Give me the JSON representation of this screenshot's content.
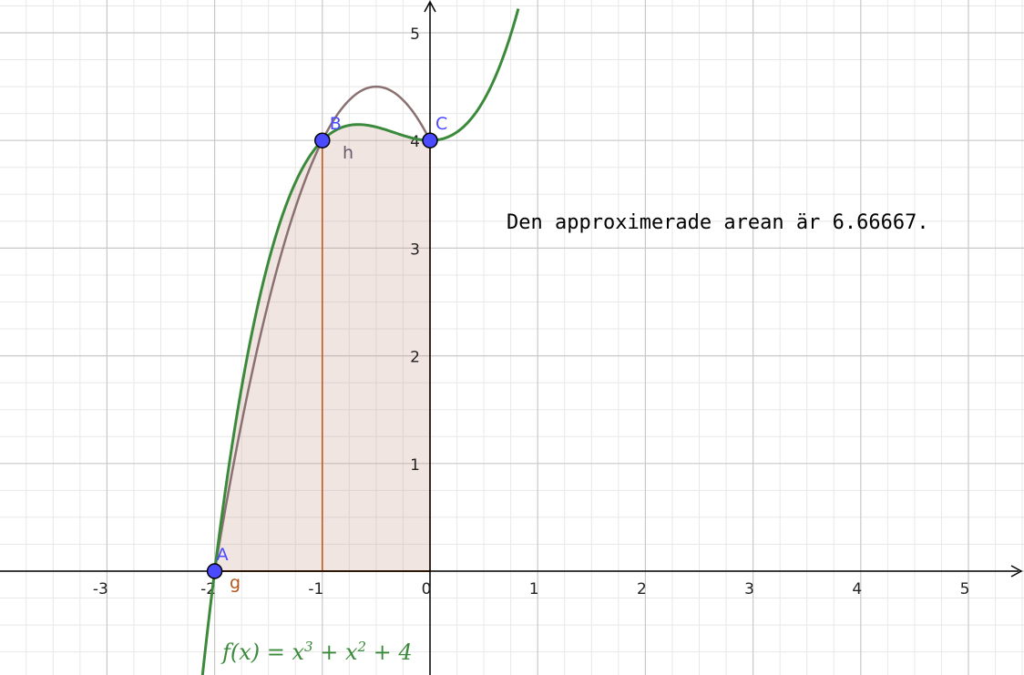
{
  "chart_data": {
    "type": "line",
    "xlim": [
      -4,
      5.5
    ],
    "ylim": [
      -0.95,
      5.3
    ],
    "x_ticks": [
      -3,
      -2,
      -1,
      0,
      1,
      2,
      3,
      4,
      5
    ],
    "x_tick_labels": [
      "-3",
      "-2",
      "-1",
      "0",
      "1",
      "2",
      "3",
      "4",
      "5"
    ],
    "y_ticks": [
      1,
      2,
      3,
      4,
      5
    ],
    "y_tick_labels": [
      "1",
      "2",
      "3",
      "4",
      "5"
    ],
    "grid": true,
    "function": {
      "name": "f",
      "label": "f(x) = x³ + x² + 4",
      "coefficients": [
        1,
        1,
        0,
        4
      ],
      "color": "#3b8a3b"
    },
    "approximation": {
      "name": "h",
      "color": "#8a7070",
      "fill_color": "#c8988a",
      "vertical_lines_x": [
        -1,
        0
      ],
      "baseline_label": "g",
      "baseline_color": "#b5561a"
    },
    "points": [
      {
        "name": "A",
        "x": -2,
        "y": 0
      },
      {
        "name": "B",
        "x": -1,
        "y": 4
      },
      {
        "name": "C",
        "x": 0,
        "y": 4
      }
    ],
    "annotation": "Den approximerade arean är 6.66667."
  },
  "colors": {
    "grid_major": "#c8c8c8",
    "grid_minor": "#e8e8e8",
    "axis": "#000000",
    "point_fill": "#4a4aff",
    "point_stroke": "#000000"
  }
}
